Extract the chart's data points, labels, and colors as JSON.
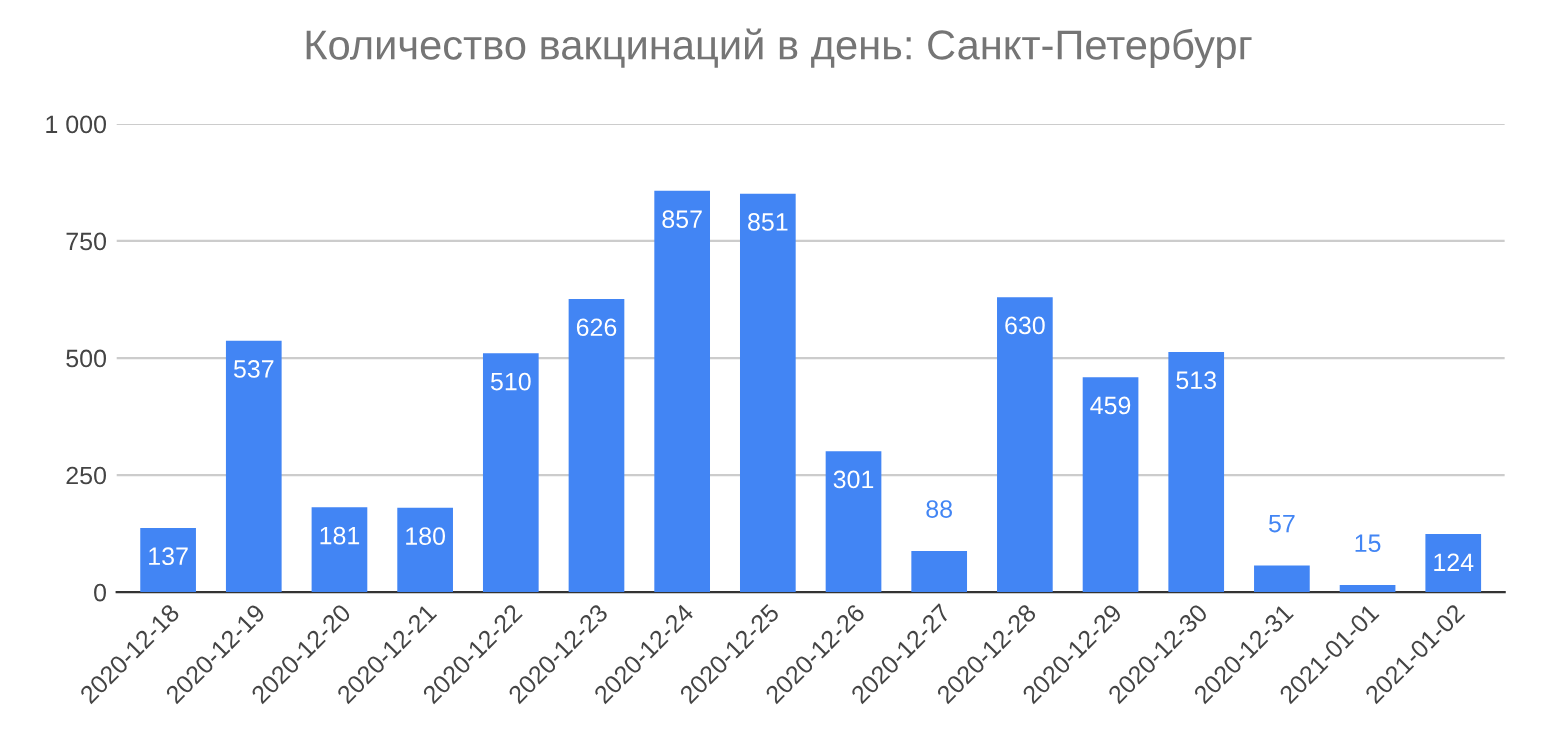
{
  "chart_data": {
    "type": "bar",
    "title": "Количество вакцинаций в день: Санкт-Петербург",
    "categories": [
      "2020-12-18",
      "2020-12-19",
      "2020-12-20",
      "2020-12-21",
      "2020-12-22",
      "2020-12-23",
      "2020-12-24",
      "2020-12-25",
      "2020-12-26",
      "2020-12-27",
      "2020-12-28",
      "2020-12-29",
      "2020-12-30",
      "2020-12-31",
      "2021-01-01",
      "2021-01-02"
    ],
    "values": [
      137,
      537,
      181,
      180,
      510,
      626,
      857,
      851,
      301,
      88,
      630,
      459,
      513,
      57,
      15,
      124
    ],
    "color": "#4285f4",
    "ylim": [
      0,
      1000
    ],
    "yticks": [
      0,
      250,
      500,
      750,
      {
        "value": 1000,
        "label": "1 000"
      }
    ],
    "grid": "y",
    "data_labels": true
  }
}
